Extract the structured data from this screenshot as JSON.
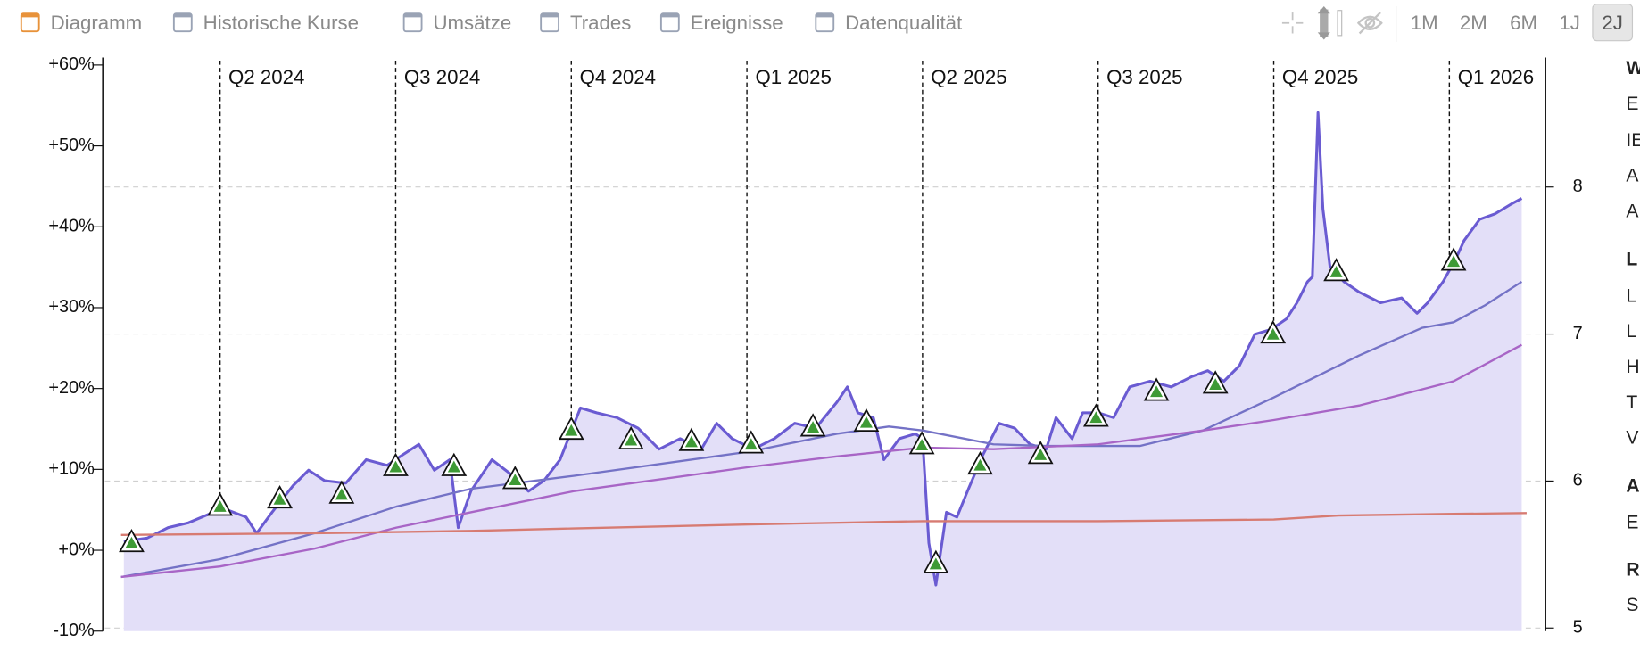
{
  "toolbar": {
    "toggles": [
      "Diagramm",
      "Historische Kurse",
      "Umsätze",
      "Trades",
      "Ereignisse",
      "Datenqualität"
    ],
    "ranges": [
      "1M",
      "2M",
      "6M",
      "1J",
      "2J"
    ],
    "selected_range": 4
  },
  "side_panel": {
    "lines": [
      {
        "text": "W",
        "bold": true
      },
      {
        "text": "E"
      },
      {
        "text": "IE"
      },
      {
        "text": "A"
      },
      {
        "text": "A"
      },
      {
        "text": "L",
        "bold": true
      },
      {
        "text": "L"
      },
      {
        "text": "L"
      },
      {
        "text": "H"
      },
      {
        "text": "T"
      },
      {
        "text": "V"
      },
      {
        "text": "A",
        "bold": true
      },
      {
        "text": "E"
      },
      {
        "text": "R",
        "bold": true
      },
      {
        "text": "S"
      }
    ]
  },
  "chart_data": {
    "type": "line",
    "xlim": [
      2024.083,
      2026.137
    ],
    "xticks": [
      {
        "value": 2024.25,
        "label": "Q2 2024"
      },
      {
        "value": 2024.5,
        "label": "Q3 2024"
      },
      {
        "value": 2024.75,
        "label": "Q4 2024"
      },
      {
        "value": 2025.0,
        "label": "Q1 2025"
      },
      {
        "value": 2025.25,
        "label": "Q2 2025"
      },
      {
        "value": 2025.5,
        "label": "Q3 2025"
      },
      {
        "value": 2025.75,
        "label": "Q4 2025"
      },
      {
        "value": 2026.0,
        "label": "Q1 2026"
      }
    ],
    "ylim": [
      -10,
      60
    ],
    "yticks": [
      {
        "value": -10,
        "label": "-10%"
      },
      {
        "value": 0,
        "label": "+0%"
      },
      {
        "value": 10,
        "label": "+10%"
      },
      {
        "value": 20,
        "label": "+20%"
      },
      {
        "value": 30,
        "label": "+30%"
      },
      {
        "value": 40,
        "label": "+40%"
      },
      {
        "value": 50,
        "label": "+50%"
      },
      {
        "value": 60,
        "label": "+60%"
      }
    ],
    "y2lim": [
      4.979,
      8.83
    ],
    "y2ticks": [
      5,
      6,
      7,
      8
    ],
    "grid": true,
    "series": [
      {
        "color": "#6a5bd2",
        "fill": "#e3dff8",
        "x": [
          2024.113,
          2024.146,
          2024.176,
          2024.205,
          2024.235,
          2024.257,
          2024.287,
          2024.302,
          2024.324,
          2024.354,
          2024.376,
          2024.399,
          2024.429,
          2024.458,
          2024.488,
          2024.51,
          2024.533,
          2024.555,
          2024.577,
          2024.589,
          2024.607,
          2024.637,
          2024.667,
          2024.689,
          2024.711,
          2024.734,
          2024.763,
          2024.786,
          2024.815,
          2024.845,
          2024.875,
          2024.905,
          2024.935,
          2024.957,
          2024.979,
          2025.009,
          2025.039,
          2025.068,
          2025.098,
          2025.128,
          2025.143,
          2025.158,
          2025.18,
          2025.195,
          2025.217,
          2025.24,
          2025.25,
          2025.259,
          2025.269,
          2025.284,
          2025.299,
          2025.314,
          2025.336,
          2025.359,
          2025.381,
          2025.403,
          2025.426,
          2025.44,
          2025.463,
          2025.478,
          2025.5,
          2025.522,
          2025.545,
          2025.574,
          2025.604,
          2025.634,
          2025.656,
          2025.679,
          2025.701,
          2025.723,
          2025.746,
          2025.768,
          2025.783,
          2025.798,
          2025.805,
          2025.813,
          2025.82,
          2025.83,
          2025.85,
          2025.872,
          2025.902,
          2025.932,
          2025.954,
          2025.969,
          2025.991,
          2026.009,
          2026.021,
          2026.043,
          2026.065,
          2026.088,
          2026.103
        ],
        "values": [
          1.1,
          1.5,
          2.8,
          3.4,
          4.5,
          5.1,
          4.1,
          2.1,
          4.7,
          8.0,
          9.9,
          8.6,
          8.3,
          11.2,
          10.5,
          11.8,
          13.1,
          9.9,
          11.2,
          2.8,
          7.3,
          11.2,
          9.2,
          7.3,
          8.6,
          11.2,
          17.6,
          17.0,
          16.4,
          15.1,
          12.5,
          13.8,
          12.5,
          15.7,
          13.8,
          12.5,
          13.8,
          15.7,
          15.1,
          18.3,
          20.2,
          17.0,
          16.4,
          11.2,
          13.8,
          14.4,
          13.8,
          0.9,
          -4.3,
          4.7,
          4.1,
          7.3,
          11.8,
          15.7,
          15.1,
          13.1,
          12.5,
          16.4,
          13.8,
          17.0,
          17.0,
          16.4,
          20.2,
          20.9,
          20.2,
          21.5,
          22.2,
          20.9,
          22.8,
          26.7,
          27.3,
          28.6,
          30.6,
          33.2,
          33.8,
          54.1,
          42.2,
          35.1,
          33.2,
          31.9,
          30.6,
          31.2,
          29.3,
          30.6,
          33.2,
          36.0,
          38.3,
          40.9,
          41.6,
          42.8,
          43.5
        ]
      },
      {
        "color": "#7472c6",
        "x": [
          2024.109,
          2024.25,
          2024.384,
          2024.501,
          2024.607,
          2024.753,
          2025.004,
          2025.128,
          2025.202,
          2025.251,
          2025.351,
          2025.426,
          2025.5,
          2025.56,
          2025.649,
          2025.75,
          2025.872,
          2025.961,
          2026.006,
          2026.051,
          2026.103
        ],
        "values": [
          -3.3,
          -1.1,
          2.1,
          5.4,
          7.6,
          9.2,
          12.2,
          14.4,
          15.3,
          14.8,
          13.1,
          12.9,
          12.9,
          12.9,
          14.8,
          18.9,
          24.1,
          27.5,
          28.2,
          30.3,
          33.2
        ]
      },
      {
        "color": "#a865c6",
        "x": [
          2024.109,
          2024.25,
          2024.384,
          2024.501,
          2024.607,
          2024.753,
          2025.004,
          2025.128,
          2025.251,
          2025.351,
          2025.5,
          2025.649,
          2025.75,
          2025.872,
          2026.006,
          2026.103
        ],
        "values": [
          -3.3,
          -2.0,
          0.2,
          2.8,
          4.7,
          7.3,
          10.3,
          11.6,
          12.7,
          12.5,
          13.1,
          14.8,
          16.1,
          17.9,
          20.9,
          25.4
        ]
      },
      {
        "color": "#d77b72",
        "x": [
          2024.109,
          2024.384,
          2024.607,
          2024.753,
          2025.004,
          2025.251,
          2025.5,
          2025.75,
          2025.842,
          2026.006,
          2026.11
        ],
        "values": [
          1.9,
          2.1,
          2.4,
          2.7,
          3.2,
          3.6,
          3.6,
          3.8,
          4.3,
          4.5,
          4.6
        ]
      },
      {
        "color": "#3e9a35",
        "marker": "triangle",
        "x": [
          2024.124,
          2024.25,
          2024.335,
          2024.423,
          2024.5,
          2024.583,
          2024.67,
          2024.75,
          2024.835,
          2024.921,
          2025.006,
          2025.094,
          2025.17,
          2025.249,
          2025.269,
          2025.332,
          2025.418,
          2025.497,
          2025.583,
          2025.667,
          2025.749,
          2025.839,
          2026.006
        ],
        "values": [
          0.9,
          5.4,
          6.3,
          6.9,
          10.3,
          10.3,
          8.7,
          14.8,
          13.6,
          13.4,
          13.1,
          15.2,
          15.8,
          13.0,
          -1.7,
          10.5,
          11.8,
          16.4,
          19.6,
          20.5,
          26.7,
          34.4,
          35.7
        ]
      }
    ]
  }
}
